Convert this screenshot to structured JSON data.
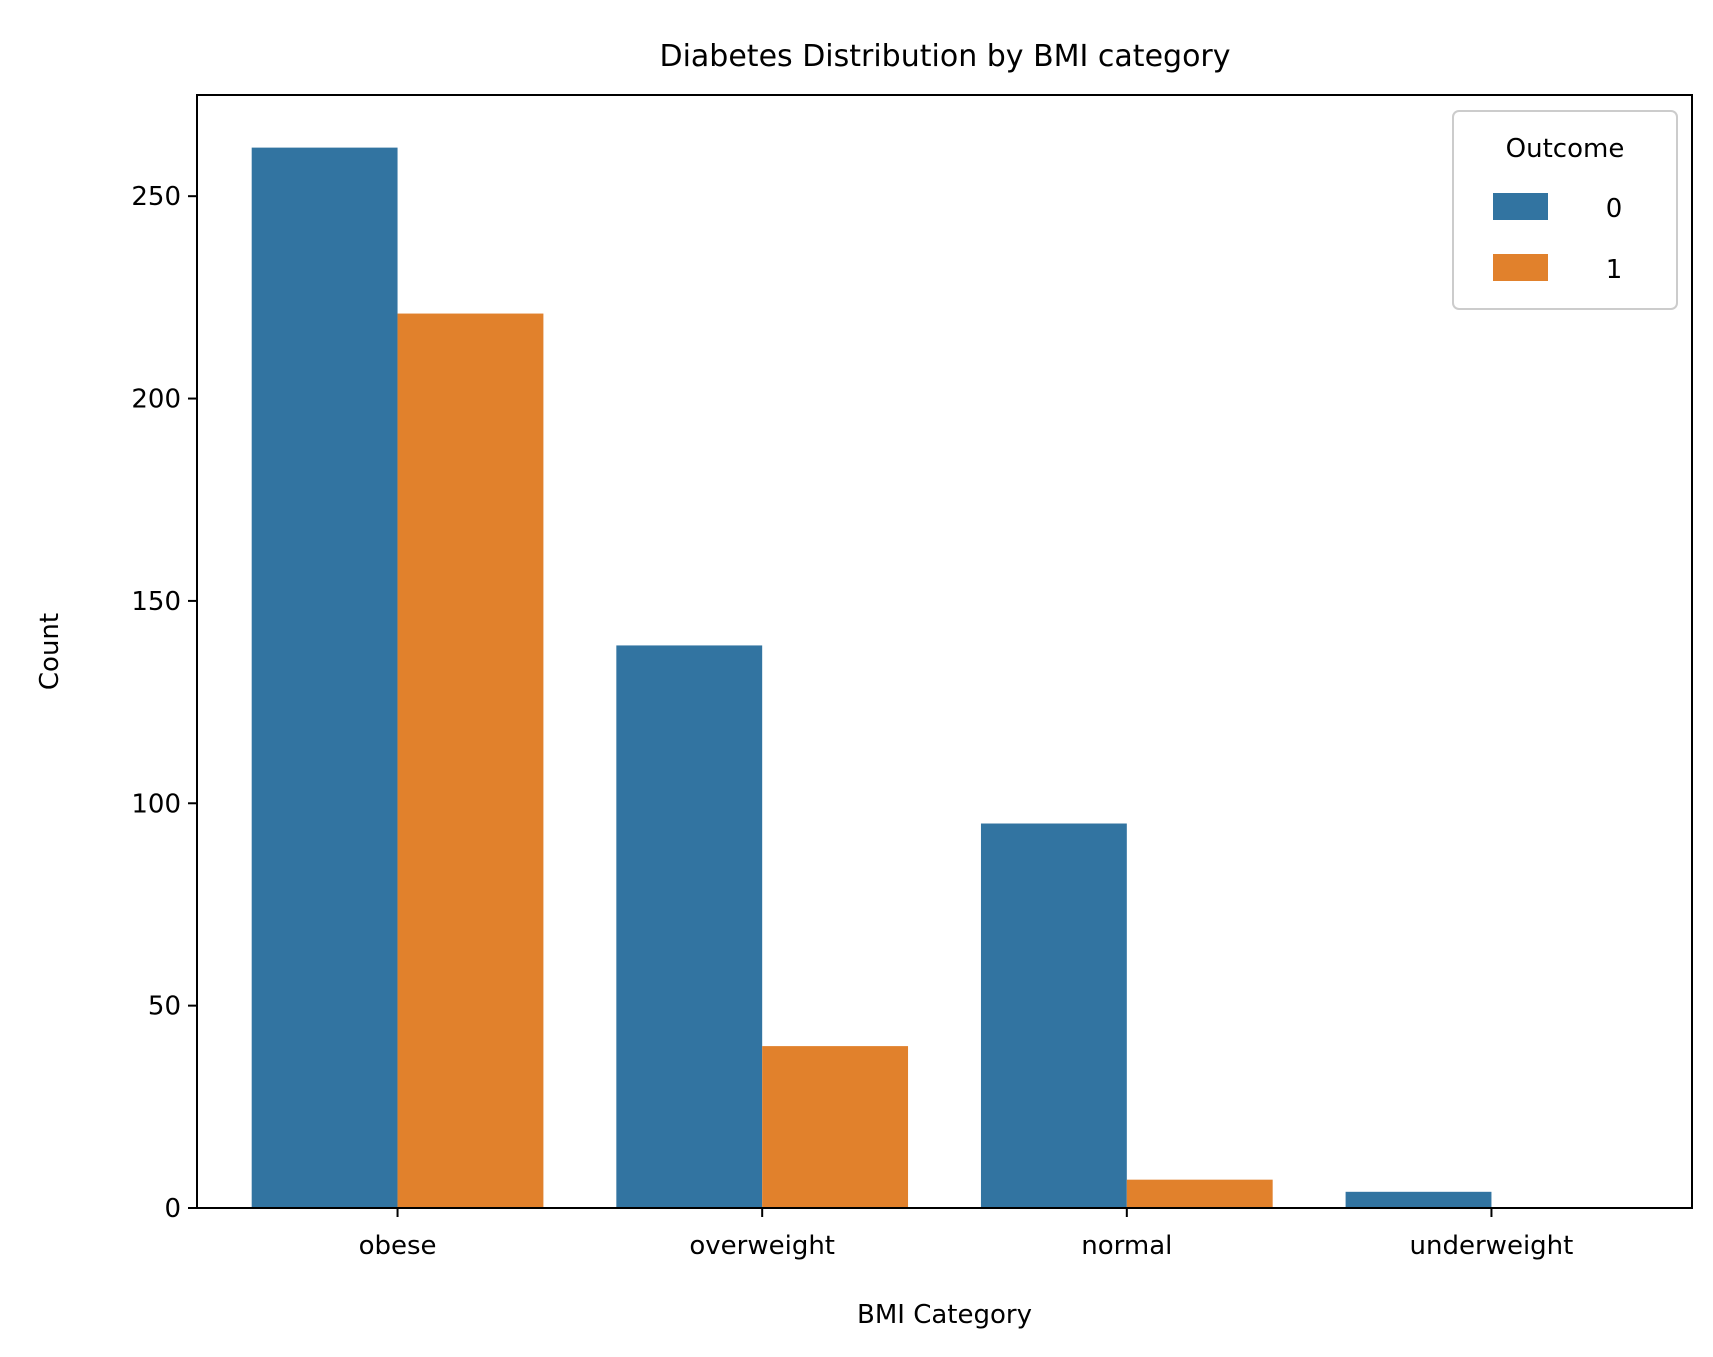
{
  "chart_data": {
    "type": "bar",
    "title": "Diabetes Distribution by BMI category",
    "xlabel": "BMI Category",
    "ylabel": "Count",
    "categories": [
      "obese",
      "overweight",
      "normal",
      "underweight"
    ],
    "series": [
      {
        "name": "0",
        "values": [
          262,
          139,
          95,
          4
        ],
        "color": "#3274a1"
      },
      {
        "name": "1",
        "values": [
          221,
          40,
          7,
          0
        ],
        "color": "#e1812c"
      }
    ],
    "ylim": [
      0,
      275
    ],
    "yticks": [
      0,
      50,
      100,
      150,
      200,
      250
    ],
    "grid": false,
    "legend": {
      "title": "Outcome",
      "position": "top-right"
    }
  }
}
